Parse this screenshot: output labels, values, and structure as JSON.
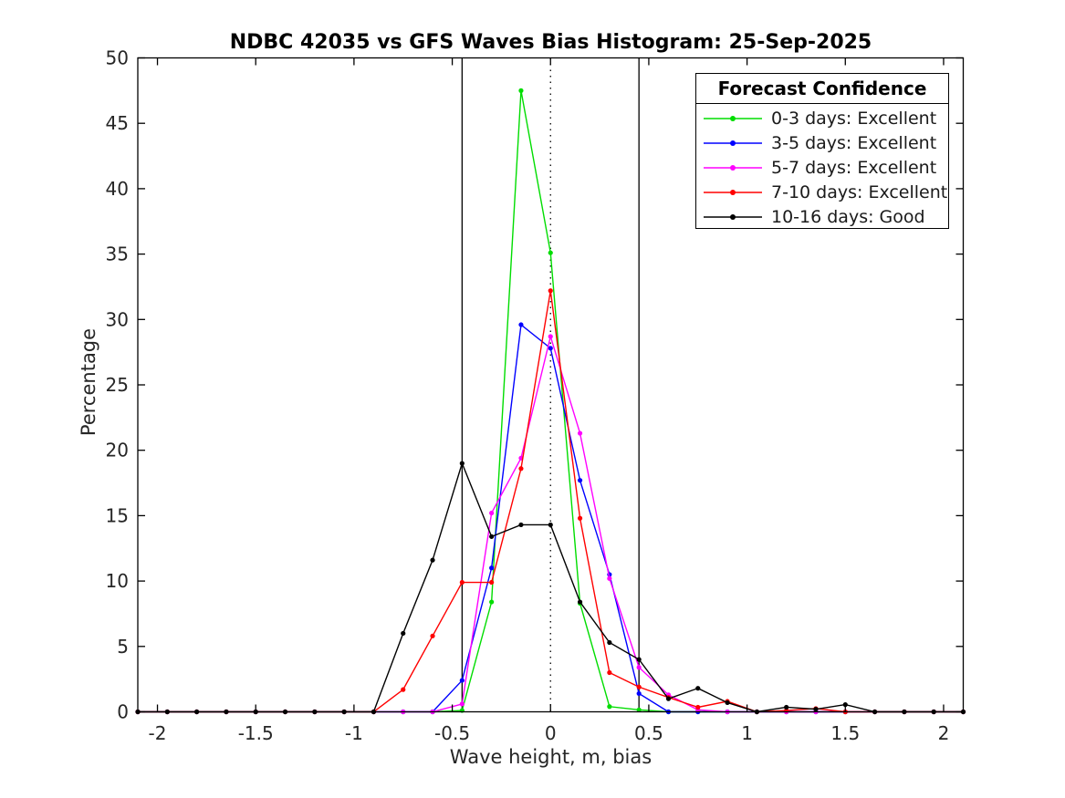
{
  "chart_data": {
    "type": "line",
    "title": "NDBC 42035 vs GFS Waves Bias Histogram: 25-Sep-2025",
    "xlabel": "Wave height, m, bias",
    "ylabel": "Percentage",
    "xlim": [
      -2.1,
      2.1
    ],
    "ylim": [
      0,
      50
    ],
    "xticks": [
      -2,
      -1.5,
      -1,
      -0.5,
      0,
      0.5,
      1,
      1.5,
      2
    ],
    "xtick_labels": [
      "-2",
      "-1.5",
      "-1",
      "-0.5",
      "0",
      "0.5",
      "1",
      "1.5",
      "2"
    ],
    "yticks": [
      0,
      5,
      10,
      15,
      20,
      25,
      30,
      35,
      40,
      45,
      50
    ],
    "ytick_labels": [
      "0",
      "5",
      "10",
      "15",
      "20",
      "25",
      "30",
      "35",
      "40",
      "45",
      "50"
    ],
    "grid": false,
    "x": [
      -2.1,
      -1.95,
      -1.8,
      -1.65,
      -1.5,
      -1.35,
      -1.2,
      -1.05,
      -0.9,
      -0.75,
      -0.6,
      -0.45,
      -0.3,
      -0.15,
      0,
      0.15,
      0.3,
      0.45,
      0.6,
      0.75,
      0.9,
      1.05,
      1.2,
      1.35,
      1.5,
      1.65,
      1.8,
      1.95,
      2.1
    ],
    "series": [
      {
        "name": "0-3 days: Excellent",
        "color": "#00dd00",
        "values": [
          0,
          0,
          0,
          0,
          0,
          0,
          0,
          0,
          0,
          0,
          0,
          0.1,
          8.4,
          47.5,
          35.1,
          8.3,
          0.4,
          0.15,
          0,
          0,
          0,
          0,
          0,
          0,
          0,
          0,
          0,
          0,
          0
        ]
      },
      {
        "name": "3-5 days: Excellent",
        "color": "#0000ff",
        "values": [
          0,
          0,
          0,
          0,
          0,
          0,
          0,
          0,
          0,
          0,
          0,
          2.4,
          11.0,
          29.6,
          27.8,
          17.7,
          10.5,
          1.4,
          0,
          0,
          0,
          0,
          0,
          0,
          0,
          0,
          0,
          0,
          0
        ]
      },
      {
        "name": "5-7 days: Excellent",
        "color": "#ff00ff",
        "values": [
          0,
          0,
          0,
          0,
          0,
          0,
          0,
          0,
          0,
          0,
          0,
          0.6,
          15.2,
          19.4,
          28.7,
          21.3,
          10.2,
          3.4,
          1.3,
          0.15,
          0,
          0,
          0,
          0,
          0,
          0,
          0,
          0,
          0
        ]
      },
      {
        "name": "7-10 days: Excellent",
        "color": "#ff0000",
        "values": [
          0,
          0,
          0,
          0,
          0,
          0,
          0,
          0,
          0,
          1.7,
          5.8,
          9.9,
          9.9,
          18.6,
          32.2,
          14.8,
          3.0,
          1.9,
          1.1,
          0.35,
          0.8,
          0,
          0.1,
          0.25,
          0,
          0,
          0,
          0,
          0
        ]
      },
      {
        "name": "10-16 days: Good",
        "color": "#000000",
        "values": [
          0,
          0,
          0,
          0,
          0,
          0,
          0,
          0,
          0,
          6.0,
          11.6,
          19.0,
          13.4,
          14.3,
          14.3,
          8.4,
          5.3,
          4.0,
          1.0,
          1.8,
          0.7,
          0,
          0.35,
          0.2,
          0.55,
          0,
          0,
          0,
          0
        ]
      }
    ],
    "reference_lines": [
      {
        "x": -0.45,
        "style": "solid",
        "color": "#000000"
      },
      {
        "x": 0,
        "style": "dotted",
        "color": "#000000"
      },
      {
        "x": 0.45,
        "style": "solid",
        "color": "#000000"
      }
    ],
    "legend": {
      "title": "Forecast Confidence",
      "position": "top-right"
    }
  }
}
